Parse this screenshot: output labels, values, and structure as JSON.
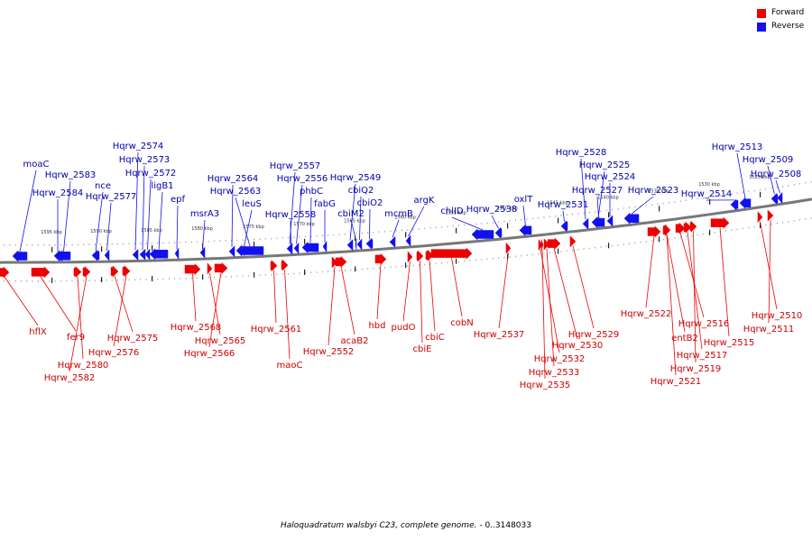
{
  "legend": {
    "forward_label": "Forward",
    "reverse_label": "Reverse",
    "forward_color": "#ee0000",
    "reverse_color": "#1111ee"
  },
  "caption": {
    "organism": "Haloquadratum walsbyi C23, complete genome.",
    "range": " - 0..3148033"
  },
  "colors": {
    "forward_label": "#cc0000",
    "reverse_label": "#0000aa",
    "backbone": "#777777"
  },
  "kbp_ticks": [
    "1595 kbp",
    "1590 kbp",
    "1585 kbp",
    "1580 kbp",
    "1575 kbp",
    "1570 kbp",
    "1565 kbp",
    "1560 kbp",
    "1555 kbp",
    "1550 kbp",
    "1545 kbp",
    "1540 kbp",
    "1535 kbp",
    "1530 kbp",
    "1525 kbp"
  ],
  "reverse_genes": [
    "moaC",
    "Hqrw_2583",
    "Hqrw_2584",
    "nce",
    "Hqrw_2577",
    "Hqrw_2574",
    "Hqrw_2573",
    "Hqrw_2572",
    "ligB1",
    "epf",
    "msrA3",
    "Hqrw_2564",
    "Hqrw_2563",
    "leuS",
    "Hqrw_2557",
    "Hqrw_2556",
    "Hqrw_2558",
    "phbC",
    "fabG",
    "Hqrw_2549",
    "cbiQ2",
    "cbiM2",
    "cbiO2",
    "mcmB",
    "argK",
    "chlID",
    "Hqrw_2538",
    "oxlT",
    "Hqrw_2531",
    "Hqrw_2528",
    "Hqrw_2525",
    "Hqrw_2524",
    "Hqrw_2527",
    "Hqrw_2523",
    "Hqrw_2514",
    "Hqrw_2513",
    "Hqrw_2509",
    "Hqrw_2508"
  ],
  "forward_genes": [
    "hflX",
    "fer9",
    "Hqrw_2580",
    "Hqrw_2582",
    "Hqrw_2575",
    "Hqrw_2576",
    "Hqrw_2568",
    "Hqrw_2565",
    "Hqrw_2566",
    "Hqrw_2561",
    "maoC",
    "Hqrw_2552",
    "acaB2",
    "hbd",
    "pudO",
    "cbiE",
    "cbiC",
    "cobN",
    "Hqrw_2537",
    "Hqrw_2532",
    "Hqrw_2530",
    "Hqrw_2533",
    "Hqrw_2535",
    "Hqrw_2529",
    "Hqrw_2522",
    "entB2",
    "Hqrw_2516",
    "Hqrw_2517",
    "Hqrw_2519",
    "Hqrw_2521",
    "Hqrw_2515",
    "Hqrw_2510",
    "Hqrw_2511"
  ]
}
